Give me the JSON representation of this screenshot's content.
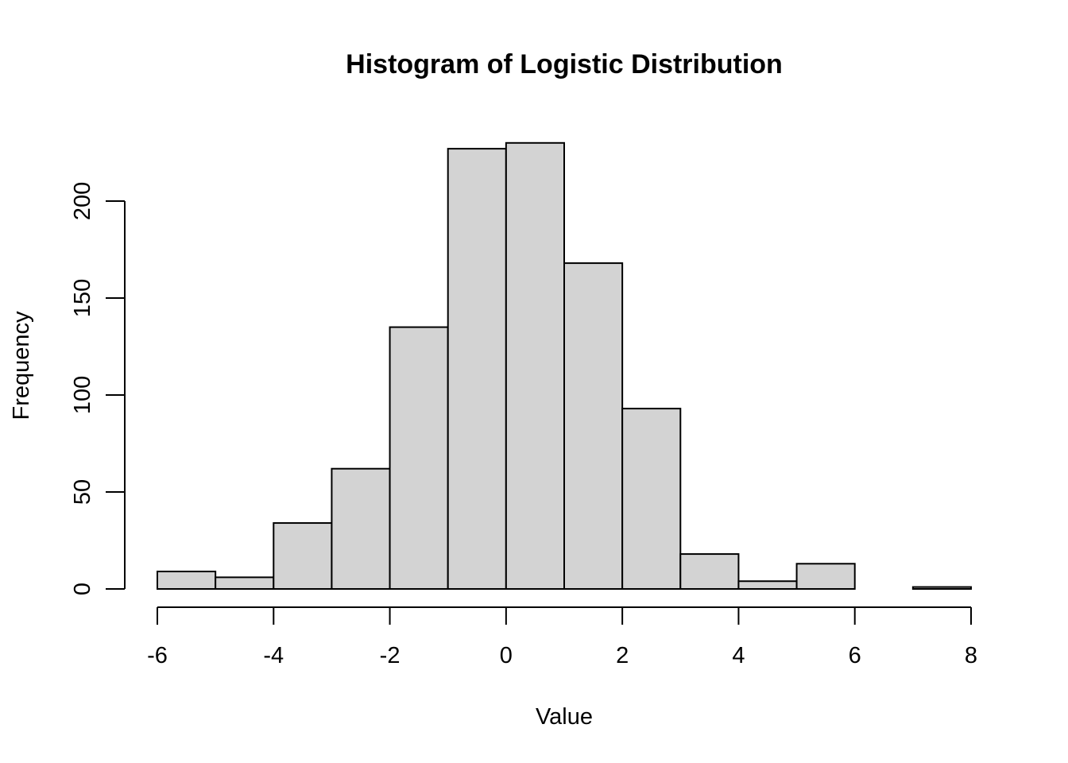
{
  "chart_data": {
    "type": "bar",
    "title": "Histogram of Logistic Distribution",
    "xlabel": "Value",
    "ylabel": "Frequency",
    "bin_edges": [
      -6,
      -5,
      -4,
      -3,
      -2,
      -1,
      0,
      1,
      2,
      3,
      4,
      5,
      6,
      7,
      8
    ],
    "values": [
      9,
      6,
      34,
      62,
      135,
      227,
      230,
      168,
      93,
      18,
      4,
      13,
      0,
      1
    ],
    "xlim": [
      -6,
      8
    ],
    "ylim": [
      0,
      230
    ],
    "x_ticks": [
      -6,
      -4,
      -2,
      0,
      2,
      4,
      6,
      8
    ],
    "y_ticks": [
      0,
      50,
      100,
      150,
      200
    ],
    "x_tick_labels": [
      "-6",
      "-4",
      "-2",
      "0",
      "2",
      "4",
      "6",
      "8"
    ],
    "y_tick_labels": [
      "0",
      "50",
      "100",
      "150",
      "200"
    ],
    "bar_color": "#d3d3d3",
    "grid": false,
    "legend": "none"
  }
}
